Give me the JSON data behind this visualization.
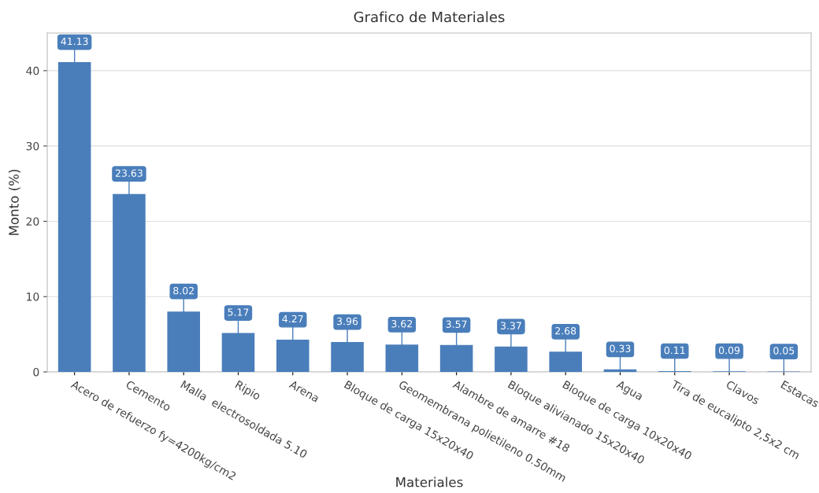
{
  "chart_data": {
    "type": "bar",
    "title": "Grafico de Materiales",
    "xlabel": "Materiales",
    "ylabel": "Monto (%)",
    "categories": [
      "Acero de refuerzo fy=4200kg/cm2",
      "Cemento",
      "Malla  electrosoldada 5.10",
      "Ripio",
      "Arena",
      "Bloque de carga 15x20x40",
      "Geomembrana polietileno 0.50mm",
      "Alambre de amarre #18",
      "Bloque alivianado 15x20x40",
      "Bloque de carga 10x20x40",
      "Agua",
      "Tira de eucalipto 2,5x2 cm",
      "Clavos",
      "Estacas"
    ],
    "values": [
      41.13,
      23.63,
      8.02,
      5.17,
      4.27,
      3.96,
      3.62,
      3.57,
      3.37,
      2.68,
      0.33,
      0.11,
      0.09,
      0.05
    ],
    "color": "#4a7ebb",
    "ylim": [
      0,
      45
    ],
    "yticks": [
      0,
      10,
      20,
      30,
      40
    ],
    "grid": "y",
    "data_labels": true
  }
}
